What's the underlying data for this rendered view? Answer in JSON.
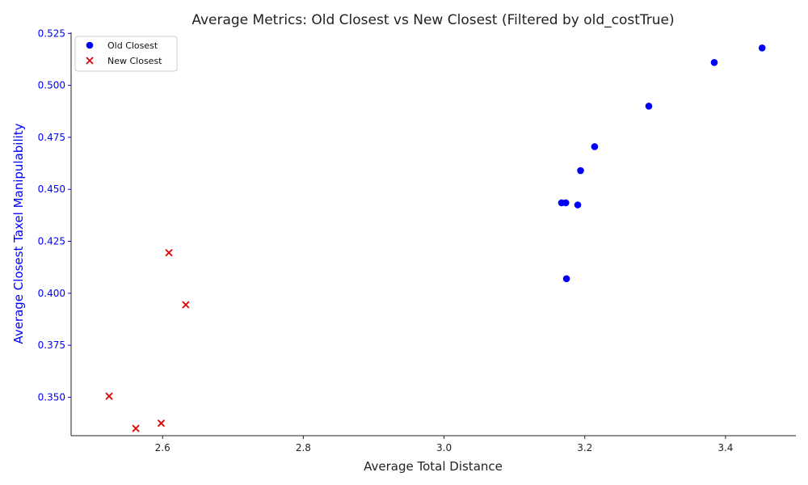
{
  "chart_data": {
    "type": "scatter",
    "title": "Average Metrics: Old Closest vs New Closest (Filtered by old_costTrue)",
    "xlabel": "Average Total Distance",
    "ylabel": "Average Closest Taxel Manipulability",
    "xlim": [
      2.47,
      3.5
    ],
    "ylim": [
      0.3315,
      0.5255
    ],
    "xticks": [
      2.6,
      2.8,
      3.0,
      3.2,
      3.4
    ],
    "xtick_labels": [
      "2.6",
      "2.8",
      "3.0",
      "3.2",
      "3.4"
    ],
    "yticks": [
      0.35,
      0.375,
      0.4,
      0.425,
      0.45,
      0.475,
      0.5,
      0.525
    ],
    "ytick_labels": [
      "0.350",
      "0.375",
      "0.400",
      "0.425",
      "0.450",
      "0.475",
      "0.500",
      "0.525"
    ],
    "grid": false,
    "legend_position": "top-left",
    "y_axis_color": "#0000ff",
    "series": [
      {
        "name": "Old Closest",
        "marker": "circle",
        "color": "#0000ff",
        "points": [
          {
            "x": 3.452,
            "y": 0.518
          },
          {
            "x": 3.384,
            "y": 0.511
          },
          {
            "x": 3.291,
            "y": 0.49
          },
          {
            "x": 3.214,
            "y": 0.4705
          },
          {
            "x": 3.194,
            "y": 0.459
          },
          {
            "x": 3.167,
            "y": 0.4435
          },
          {
            "x": 3.173,
            "y": 0.4435
          },
          {
            "x": 3.19,
            "y": 0.4425
          },
          {
            "x": 3.174,
            "y": 0.407
          }
        ]
      },
      {
        "name": "New Closest",
        "marker": "x",
        "color": "#dd0000",
        "points": [
          {
            "x": 2.609,
            "y": 0.4195
          },
          {
            "x": 2.633,
            "y": 0.3945
          },
          {
            "x": 2.524,
            "y": 0.3505
          },
          {
            "x": 2.598,
            "y": 0.3375
          },
          {
            "x": 2.562,
            "y": 0.335
          }
        ]
      }
    ]
  }
}
